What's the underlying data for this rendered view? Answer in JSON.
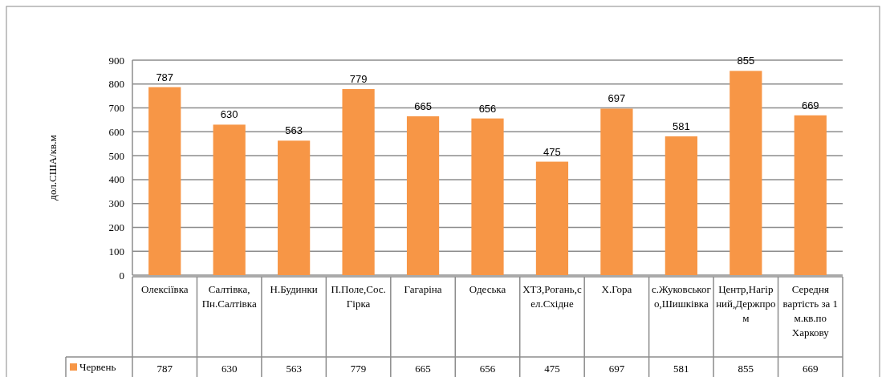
{
  "chart_data": {
    "type": "bar",
    "ylabel": "дол.США/кв.м",
    "categories": [
      "Олексіївка",
      "Салтівка, Пн.Салтівка",
      "Н.Будинки",
      "П.Поле,Сос.Гірка",
      "Гагаріна",
      "Одеська",
      "ХТЗ,Рогань,сел.Східне",
      "Х.Гора",
      "с.Жуковського,Шишківка",
      "Центр,Нагірний,Держпром",
      "Середня вартість за 1 м.кв.по Харкову"
    ],
    "series": [
      {
        "name": "Червень",
        "color": "#f79646",
        "values": [
          787,
          630,
          563,
          779,
          665,
          656,
          475,
          697,
          581,
          855,
          669
        ],
        "value_labels": [
          "787",
          "630",
          "563",
          "779",
          "665",
          "656",
          "475",
          "697",
          "581",
          "855",
          "669"
        ]
      }
    ],
    "ylim": [
      0,
      900
    ],
    "yticks": [
      0,
      100,
      200,
      300,
      400,
      500,
      600,
      700,
      800,
      900
    ],
    "grid": "y",
    "legend": "bottom",
    "annotations": [
      "787",
      "630",
      "563",
      "779",
      "665",
      "656",
      "475",
      "697",
      "581",
      "855",
      "669"
    ]
  }
}
